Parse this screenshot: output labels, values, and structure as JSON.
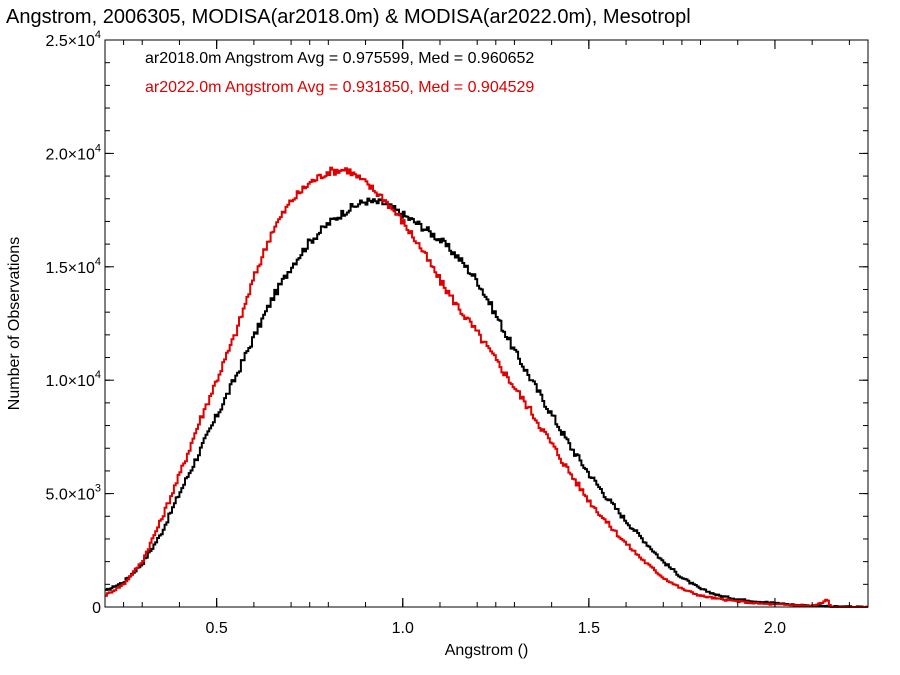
{
  "chart_data": {
    "type": "line",
    "step": true,
    "title": "Angstrom, 2006305, MODISA(ar2018.0m) & MODISA(ar2022.0m), Mesotropl",
    "xlabel": "Angstrom ()",
    "ylabel": "Number of Observations",
    "xlim": [
      0.2,
      2.25
    ],
    "ylim": [
      0,
      25000
    ],
    "x_ticks": [
      {
        "value": 0.5,
        "label": "0.5"
      },
      {
        "value": 1.0,
        "label": "1.0"
      },
      {
        "value": 1.5,
        "label": "1.5"
      },
      {
        "value": 2.0,
        "label": "2.0"
      }
    ],
    "y_ticks": [
      {
        "value": 0,
        "mant": "0",
        "exp": ""
      },
      {
        "value": 5000,
        "mant": "5.0×10",
        "exp": "3"
      },
      {
        "value": 10000,
        "mant": "1.0×10",
        "exp": "4"
      },
      {
        "value": 15000,
        "mant": "1.5×10",
        "exp": "4"
      },
      {
        "value": 20000,
        "mant": "2.0×10",
        "exp": "4"
      },
      {
        "value": 25000,
        "mant": "2.5×10",
        "exp": "4"
      }
    ],
    "legend_position": "top-left",
    "grid": false,
    "series": [
      {
        "name": "ar2018.0m",
        "legend": "ar2018.0m Angstrom Avg = 0.975599, Med = 0.960652",
        "color": "#000000",
        "points": [
          [
            0.2,
            700
          ],
          [
            0.25,
            1100
          ],
          [
            0.3,
            1900
          ],
          [
            0.35,
            3200
          ],
          [
            0.4,
            5000
          ],
          [
            0.45,
            6700
          ],
          [
            0.5,
            8400
          ],
          [
            0.55,
            10100
          ],
          [
            0.6,
            11900
          ],
          [
            0.65,
            13600
          ],
          [
            0.7,
            15000
          ],
          [
            0.75,
            16100
          ],
          [
            0.8,
            16900
          ],
          [
            0.85,
            17500
          ],
          [
            0.9,
            17900
          ],
          [
            0.95,
            17800
          ],
          [
            1.0,
            17300
          ],
          [
            1.05,
            16800
          ],
          [
            1.1,
            16200
          ],
          [
            1.15,
            15400
          ],
          [
            1.2,
            14400
          ],
          [
            1.25,
            12900
          ],
          [
            1.3,
            11300
          ],
          [
            1.35,
            9900
          ],
          [
            1.4,
            8500
          ],
          [
            1.45,
            7100
          ],
          [
            1.5,
            5900
          ],
          [
            1.55,
            4800
          ],
          [
            1.6,
            3800
          ],
          [
            1.65,
            2900
          ],
          [
            1.7,
            2000
          ],
          [
            1.75,
            1300
          ],
          [
            1.8,
            800
          ],
          [
            1.85,
            500
          ],
          [
            1.9,
            350
          ],
          [
            1.95,
            250
          ],
          [
            2.0,
            180
          ],
          [
            2.05,
            100
          ],
          [
            2.1,
            60
          ],
          [
            2.15,
            20
          ],
          [
            2.25,
            0
          ]
        ]
      },
      {
        "name": "ar2022.0m",
        "legend": "ar2022.0m Angstrom Avg = 0.931850, Med = 0.904529",
        "color": "#e00000",
        "points": [
          [
            0.2,
            500
          ],
          [
            0.25,
            1000
          ],
          [
            0.3,
            2000
          ],
          [
            0.35,
            3800
          ],
          [
            0.4,
            5800
          ],
          [
            0.45,
            8000
          ],
          [
            0.5,
            10000
          ],
          [
            0.55,
            12000
          ],
          [
            0.6,
            14500
          ],
          [
            0.65,
            16600
          ],
          [
            0.7,
            17900
          ],
          [
            0.75,
            18700
          ],
          [
            0.8,
            19200
          ],
          [
            0.85,
            19300
          ],
          [
            0.9,
            18700
          ],
          [
            0.95,
            18000
          ],
          [
            1.0,
            17000
          ],
          [
            1.05,
            15800
          ],
          [
            1.1,
            14400
          ],
          [
            1.15,
            13200
          ],
          [
            1.2,
            12100
          ],
          [
            1.25,
            10900
          ],
          [
            1.3,
            9700
          ],
          [
            1.35,
            8500
          ],
          [
            1.4,
            7200
          ],
          [
            1.45,
            5900
          ],
          [
            1.5,
            4700
          ],
          [
            1.55,
            3700
          ],
          [
            1.6,
            2800
          ],
          [
            1.65,
            2000
          ],
          [
            1.7,
            1300
          ],
          [
            1.75,
            800
          ],
          [
            1.8,
            500
          ],
          [
            1.85,
            350
          ],
          [
            1.9,
            250
          ],
          [
            1.95,
            160
          ],
          [
            2.0,
            110
          ],
          [
            2.05,
            80
          ],
          [
            2.1,
            40
          ],
          [
            2.13,
            200
          ],
          [
            2.14,
            350
          ],
          [
            2.15,
            0
          ],
          [
            2.25,
            0
          ]
        ]
      }
    ]
  }
}
